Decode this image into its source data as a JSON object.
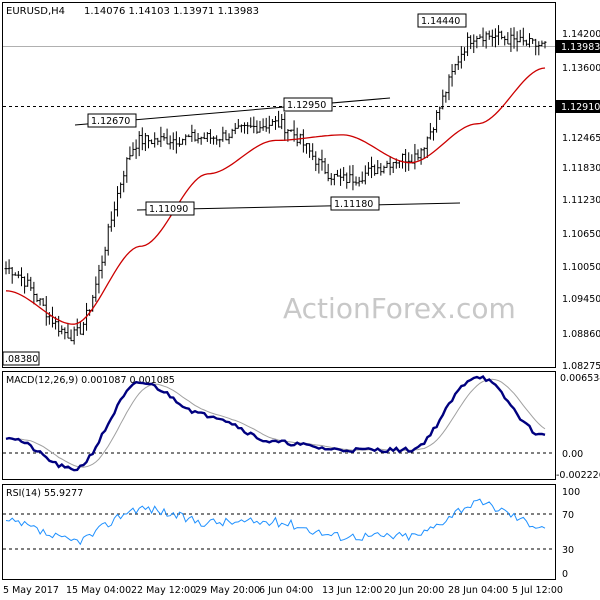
{
  "main_panel": {
    "header": {
      "symbol": "EURUSD,H4",
      "ohlc": "1.14076 1.14103 1.13971 1.13983"
    },
    "y_ticks": [
      "1.14200",
      "1.13600",
      "1.12465",
      "1.11830",
      "1.11230",
      "1.10650",
      "1.10050",
      "1.09450",
      "1.08860",
      "1.08275"
    ],
    "current_price_label": "1.13983",
    "level_label": "1.12910",
    "annotations": [
      "1.14440",
      "1.12950",
      "1.12670",
      "1.11090",
      "1.11180",
      ".08380"
    ]
  },
  "macd_panel": {
    "header": "MACD(12,26,9) 0.001087 0.001085",
    "y_ticks": [
      "0.006534",
      "0.00",
      "-0.002226"
    ]
  },
  "rsi_panel": {
    "header": "RSI(14) 55.9277",
    "y_ticks": [
      "100",
      "70",
      "30",
      "0"
    ]
  },
  "x_ticks": [
    "5 May 2017",
    "15 May 04:00",
    "22 May 12:00",
    "29 May 20:00",
    "6 Jun 04:00",
    "13 Jun 12:00",
    "20 Jun 20:00",
    "28 Jun 04:00",
    "5 Jul 12:00"
  ],
  "watermark": "ActionForex.com",
  "colors": {
    "candles": "#000000",
    "ma": "#cc0000",
    "macd": "#00007f",
    "signal": "#a0a0a0",
    "rsi": "#1e90ff"
  },
  "chart_data": {
    "type": "line",
    "x": [
      "5 May 2017",
      "15 May 04:00",
      "22 May 12:00",
      "29 May 20:00",
      "6 Jun 04:00",
      "13 Jun 12:00",
      "20 Jun 20:00",
      "28 Jun 04:00",
      "5 Jul 12:00"
    ],
    "price_series": [
      {
        "name": "EURUSD",
        "values": [
          1.1,
          1.088,
          1.123,
          1.1235,
          1.126,
          1.116,
          1.12,
          1.142,
          1.14
        ]
      },
      {
        "name": "",
        "values": [
          1.096,
          1.09,
          1.104,
          1.117,
          1.123,
          1.124,
          1.119,
          1.126,
          1.136
        ]
      }
    ],
    "macd": {
      "name": "MACD(12,26,9)",
      "latest": 0.001087,
      "signal_latest": 0.001085,
      "values": [
        0.001,
        -0.002,
        0.006,
        0.003,
        0.0005,
        -0.0002,
        -0.0002,
        0.0066,
        0.0011
      ]
    },
    "rsi": {
      "name": "RSI(14)",
      "latest": 55.9277,
      "values": [
        60,
        40,
        75,
        60,
        60,
        45,
        45,
        80,
        56
      ]
    },
    "levels": [
      1.1291,
      1.13983
    ],
    "trendlines": [
      {
        "from": 1.1267,
        "to": 1.1295
      },
      {
        "from": 1.1109,
        "to": 1.1118
      }
    ],
    "ylim": [
      1.0825,
      1.1475
    ],
    "macd_ylim": [
      -0.0028,
      0.007
    ],
    "rsi_ylim": [
      0,
      100
    ]
  }
}
